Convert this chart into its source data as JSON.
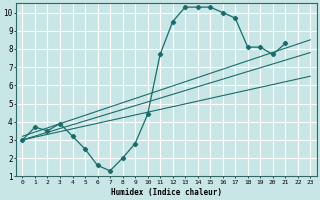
{
  "xlabel": "Humidex (Indice chaleur)",
  "xlim": [
    -0.5,
    23.5
  ],
  "ylim": [
    1,
    10.5
  ],
  "xticks": [
    0,
    1,
    2,
    3,
    4,
    5,
    6,
    7,
    8,
    9,
    10,
    11,
    12,
    13,
    14,
    15,
    16,
    17,
    18,
    19,
    20,
    21,
    22,
    23
  ],
  "yticks": [
    1,
    2,
    3,
    4,
    5,
    6,
    7,
    8,
    9,
    10
  ],
  "bg_color": "#c8e6e6",
  "line_color": "#1a6b6b",
  "grid_color": "#ffffff",
  "main_curve": {
    "x": [
      0,
      1,
      2,
      3,
      4,
      5,
      6,
      7,
      8,
      9,
      10,
      11,
      12,
      13,
      14,
      15,
      16,
      17,
      18,
      19,
      20,
      21
    ],
    "y": [
      3.0,
      3.7,
      3.5,
      3.9,
      3.2,
      2.5,
      1.6,
      1.3,
      2.0,
      2.8,
      4.4,
      7.7,
      9.5,
      10.3,
      10.3,
      10.3,
      10.0,
      9.7,
      8.1,
      8.1,
      7.7,
      8.3
    ]
  },
  "line1": {
    "x": [
      0,
      23
    ],
    "y": [
      3.0,
      6.5
    ]
  },
  "line2": {
    "x": [
      0,
      23
    ],
    "y": [
      3.0,
      7.8
    ]
  },
  "line3": {
    "x": [
      0,
      23
    ],
    "y": [
      3.2,
      8.5
    ]
  }
}
